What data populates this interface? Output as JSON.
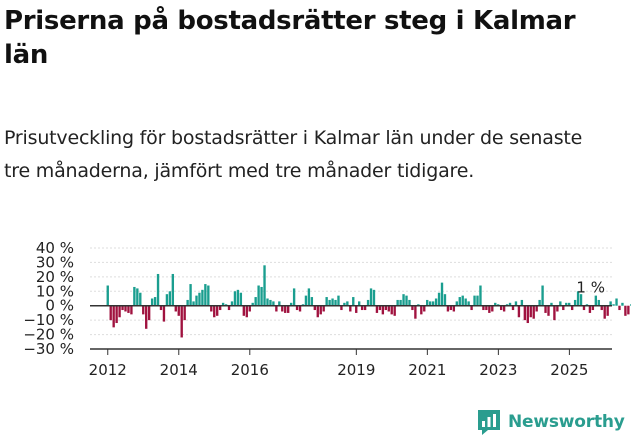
{
  "header": {
    "title": "Priserna på bostadsrätter steg i Kalmar län",
    "subtitle": "Prisutveckling för bostadsrätter i Kalmar län under de senaste tre månaderna, jämfört med tre månader tidigare."
  },
  "brand": {
    "name": "Newsworthy",
    "icon": "newsworthy-logo-icon"
  },
  "colors": {
    "positive": "#1a9e8f",
    "negative": "#a0123f",
    "axis": "#333333",
    "grid": "#dddddd",
    "brand": "#2a9d8f"
  },
  "chart_data": {
    "type": "bar",
    "ylabel": "",
    "ylim": [
      -30,
      40
    ],
    "yticks": [
      -30,
      -20,
      -10,
      0,
      10,
      20,
      30,
      40
    ],
    "ytick_labels": [
      "−30 %",
      "−20 %",
      "−10 %",
      "0 %",
      "10 %",
      "20 %",
      "30 %",
      "40 %"
    ],
    "xlim": [
      2011.5,
      2026.2
    ],
    "xticks": [
      2012,
      2014,
      2016,
      2019,
      2021,
      2023,
      2025
    ],
    "xtick_labels": [
      "2012",
      "2014",
      "2016",
      "2019",
      "2021",
      "2023",
      "2025"
    ],
    "grid": true,
    "annotation": {
      "text": "1 %",
      "x": 2025.6,
      "y": 1
    },
    "series": [
      {
        "x_start": 2012.0,
        "step": 0.0833,
        "values": [
          14,
          -10,
          -15,
          -12,
          -8,
          -3,
          -4,
          -5,
          -6,
          13,
          12,
          9,
          -6,
          -16,
          -10,
          5,
          6,
          22,
          -3,
          -11,
          8,
          10,
          22,
          -4,
          -7,
          -22,
          -10,
          4,
          15,
          3,
          7,
          9,
          11,
          15,
          14,
          -4,
          -8,
          -7,
          -3,
          2,
          1,
          -3,
          3,
          10,
          11,
          9,
          -7,
          -8,
          -4,
          2,
          6,
          14,
          13,
          28,
          5,
          4,
          3,
          -4,
          3,
          -4,
          -5,
          -5,
          2,
          12,
          -3,
          -4,
          1,
          7,
          12,
          6,
          -3,
          -8,
          -6,
          -4,
          6,
          4,
          5,
          4,
          7,
          -3,
          2,
          3,
          -4,
          6,
          -5,
          3,
          -3,
          -3,
          4,
          12,
          11,
          -5,
          -3,
          -6,
          -3,
          -4,
          -6,
          -7,
          4,
          4,
          8,
          7,
          4,
          -3,
          -9,
          1,
          -6,
          -4,
          4,
          3,
          3,
          5,
          9,
          16,
          8,
          -4,
          -3,
          -4,
          3,
          6,
          7,
          5,
          3,
          -3,
          7,
          7,
          14,
          -3,
          -3,
          -5,
          -4,
          2,
          1,
          -3,
          -4,
          1,
          2,
          -3,
          3,
          -8,
          4,
          -10,
          -12,
          -8,
          -9,
          -4,
          4,
          14,
          -5,
          -7,
          2,
          -10,
          -4,
          3,
          -3,
          2,
          2,
          -3,
          4,
          10,
          8,
          -3,
          1,
          -5,
          -3,
          7,
          4,
          -3,
          -9,
          -7,
          3,
          1,
          5,
          -3,
          2,
          -7,
          -6,
          1,
          2,
          1
        ]
      }
    ]
  }
}
